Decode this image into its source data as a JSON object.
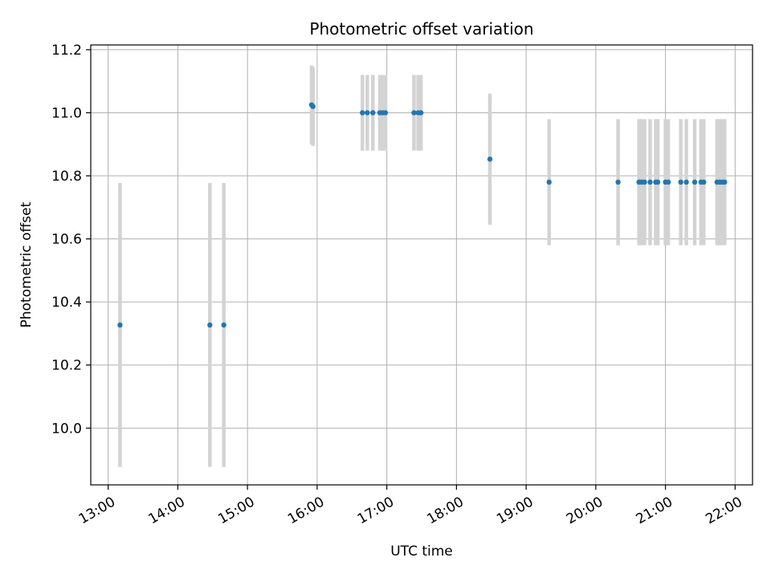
{
  "chart_data": {
    "type": "scatter",
    "title": "Photometric offset variation",
    "xlabel": "UTC time",
    "ylabel": "Photometric offset",
    "x_unit": "hours UTC (decimal)",
    "xlim": [
      12.75,
      22.25
    ],
    "ylim": [
      9.82,
      11.215
    ],
    "xticks": [
      {
        "value": 13,
        "label": "13:00"
      },
      {
        "value": 14,
        "label": "14:00"
      },
      {
        "value": 15,
        "label": "15:00"
      },
      {
        "value": 16,
        "label": "16:00"
      },
      {
        "value": 17,
        "label": "17:00"
      },
      {
        "value": 18,
        "label": "18:00"
      },
      {
        "value": 19,
        "label": "19:00"
      },
      {
        "value": 20,
        "label": "20:00"
      },
      {
        "value": 21,
        "label": "21:00"
      },
      {
        "value": 22,
        "label": "22:00"
      }
    ],
    "yticks": [
      {
        "value": 10.0,
        "label": "10.0"
      },
      {
        "value": 10.2,
        "label": "10.2"
      },
      {
        "value": 10.4,
        "label": "10.4"
      },
      {
        "value": 10.6,
        "label": "10.6"
      },
      {
        "value": 10.8,
        "label": "10.8"
      },
      {
        "value": 11.0,
        "label": "11.0"
      },
      {
        "value": 11.2,
        "label": "11.2"
      }
    ],
    "grid": true,
    "marker_color": "#1f77b4",
    "errorbar_color": "#d3d3d3",
    "points": [
      {
        "x": 13.17,
        "y": 10.327,
        "err": 0.45
      },
      {
        "x": 14.46,
        "y": 10.327,
        "err": 0.45
      },
      {
        "x": 14.66,
        "y": 10.327,
        "err": 0.45
      },
      {
        "x": 15.92,
        "y": 11.025,
        "err": 0.125
      },
      {
        "x": 15.94,
        "y": 11.02,
        "err": 0.125
      },
      {
        "x": 16.65,
        "y": 11.0,
        "err": 0.12
      },
      {
        "x": 16.72,
        "y": 11.0,
        "err": 0.12
      },
      {
        "x": 16.8,
        "y": 11.0,
        "err": 0.12
      },
      {
        "x": 16.9,
        "y": 11.0,
        "err": 0.12
      },
      {
        "x": 16.94,
        "y": 11.0,
        "err": 0.12
      },
      {
        "x": 16.98,
        "y": 11.0,
        "err": 0.12
      },
      {
        "x": 17.39,
        "y": 11.0,
        "err": 0.12
      },
      {
        "x": 17.45,
        "y": 11.0,
        "err": 0.12
      },
      {
        "x": 17.49,
        "y": 11.0,
        "err": 0.12
      },
      {
        "x": 18.48,
        "y": 10.853,
        "err": 0.208
      },
      {
        "x": 19.33,
        "y": 10.78,
        "err": 0.2
      },
      {
        "x": 20.32,
        "y": 10.78,
        "err": 0.2
      },
      {
        "x": 20.62,
        "y": 10.78,
        "err": 0.2
      },
      {
        "x": 20.66,
        "y": 10.78,
        "err": 0.2
      },
      {
        "x": 20.7,
        "y": 10.78,
        "err": 0.2
      },
      {
        "x": 20.78,
        "y": 10.78,
        "err": 0.2
      },
      {
        "x": 20.86,
        "y": 10.78,
        "err": 0.2
      },
      {
        "x": 20.89,
        "y": 10.78,
        "err": 0.2
      },
      {
        "x": 21.0,
        "y": 10.78,
        "err": 0.2
      },
      {
        "x": 21.04,
        "y": 10.78,
        "err": 0.2
      },
      {
        "x": 21.22,
        "y": 10.78,
        "err": 0.2
      },
      {
        "x": 21.3,
        "y": 10.78,
        "err": 0.2
      },
      {
        "x": 21.42,
        "y": 10.78,
        "err": 0.2
      },
      {
        "x": 21.51,
        "y": 10.78,
        "err": 0.2
      },
      {
        "x": 21.55,
        "y": 10.78,
        "err": 0.2
      },
      {
        "x": 21.74,
        "y": 10.78,
        "err": 0.2
      },
      {
        "x": 21.78,
        "y": 10.78,
        "err": 0.2
      },
      {
        "x": 21.82,
        "y": 10.78,
        "err": 0.2
      },
      {
        "x": 21.85,
        "y": 10.78,
        "err": 0.2
      }
    ]
  }
}
